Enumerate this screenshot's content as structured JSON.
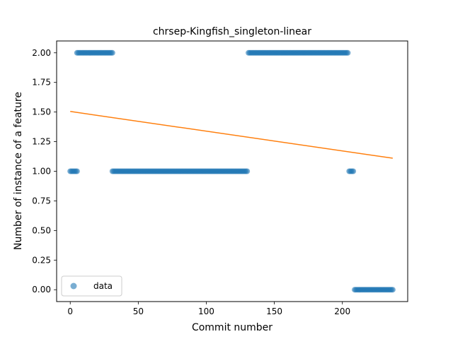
{
  "chart_data": {
    "type": "scatter",
    "title": "chrsep-Kingfish_singleton-linear",
    "xlabel": "Commit number",
    "ylabel": "Number of instance of a feature",
    "xlim": [
      -10,
      248
    ],
    "ylim": [
      -0.1,
      2.1
    ],
    "xticks": [
      0,
      50,
      100,
      150,
      200
    ],
    "yticks": [
      0.0,
      0.25,
      0.5,
      0.75,
      1.0,
      1.25,
      1.5,
      1.75,
      2.0
    ],
    "ytick_labels": [
      "0.00",
      "0.25",
      "0.50",
      "0.75",
      "1.00",
      "1.25",
      "1.50",
      "1.75",
      "2.00"
    ],
    "legend": {
      "position": "lower-left",
      "entries": [
        {
          "label": "data"
        }
      ]
    },
    "colors": {
      "data": "#1f77b4",
      "fit": "#ff7f0e"
    },
    "series": [
      {
        "name": "data",
        "kind": "scatter",
        "segments": [
          {
            "x_from": 0,
            "x_to": 5,
            "y": 1
          },
          {
            "x_from": 5,
            "x_to": 31,
            "y": 2
          },
          {
            "x_from": 31,
            "x_to": 130,
            "y": 1
          },
          {
            "x_from": 131,
            "x_to": 204,
            "y": 2
          },
          {
            "x_from": 205,
            "x_to": 208,
            "y": 1
          },
          {
            "x_from": 209,
            "x_to": 237,
            "y": 0
          }
        ]
      },
      {
        "kind": "line",
        "x": [
          0,
          237
        ],
        "y": [
          1.505,
          1.11
        ]
      }
    ]
  }
}
